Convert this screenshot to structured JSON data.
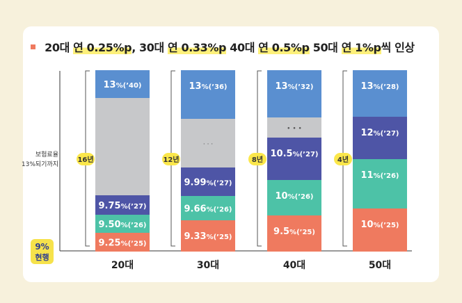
{
  "title": {
    "segments": [
      {
        "text": "20대 ",
        "hl": false
      },
      {
        "text": "연 0.25%p",
        "hl": true
      },
      {
        "text": ", 30대 ",
        "hl": false
      },
      {
        "text": "연 0.33%p",
        "hl": true
      },
      {
        "text": " 40대 ",
        "hl": false
      },
      {
        "text": "연 0.5%p",
        "hl": true
      },
      {
        "text": " 50대 ",
        "hl": false
      },
      {
        "text": "연 1%p",
        "hl": true
      },
      {
        "text": "씩 인상",
        "hl": false
      }
    ]
  },
  "axis": {
    "label_line1": "보험료율",
    "label_line2": "13%되기까지",
    "current_value": "9%",
    "current_label": "현행"
  },
  "colors": {
    "blue": "#5a8fd0",
    "indigo": "#4e55a6",
    "teal": "#4dc2a7",
    "salmon": "#ef7a5f",
    "gray": "#c7c8ca",
    "badge": "#fbe74b",
    "current_badge": "#f6e24b"
  },
  "chart_data": {
    "type": "bar",
    "categories": [
      "20대",
      "30대",
      "40대",
      "50대"
    ],
    "years_to_13pct": [
      "16년",
      "12년",
      "8년",
      "4년"
    ],
    "ylim": [
      9,
      13
    ],
    "stacks": [
      {
        "category": "20대",
        "segments": [
          {
            "rate": 9.25,
            "pct": "9.25",
            "year": "(’25)",
            "color": "salmon"
          },
          {
            "rate": 9.5,
            "pct": "9.50",
            "year": "(’26)",
            "color": "teal"
          },
          {
            "rate": 9.75,
            "pct": "9.75",
            "year": "(’27)",
            "color": "indigo"
          },
          {
            "rate": null,
            "gap": true,
            "dots": "",
            "color": "gray"
          },
          {
            "rate": 13,
            "pct": "13",
            "year": "(’40)",
            "color": "blue"
          }
        ]
      },
      {
        "category": "30대",
        "segments": [
          {
            "rate": 9.33,
            "pct": "9.33",
            "year": "(’25)",
            "color": "salmon"
          },
          {
            "rate": 9.66,
            "pct": "9.66",
            "year": "(’26)",
            "color": "teal"
          },
          {
            "rate": 9.99,
            "pct": "9.99",
            "year": "(’27)",
            "color": "indigo"
          },
          {
            "rate": null,
            "gap": true,
            "dots": "· · ·",
            "color": "gray"
          },
          {
            "rate": 13,
            "pct": "13",
            "year": "(’36)",
            "color": "blue"
          }
        ]
      },
      {
        "category": "40대",
        "segments": [
          {
            "rate": 9.5,
            "pct": "9.5",
            "year": "(’25)",
            "color": "salmon"
          },
          {
            "rate": 10,
            "pct": "10",
            "year": "(’26)",
            "color": "teal"
          },
          {
            "rate": 10.5,
            "pct": "10.5",
            "year": "(’27)",
            "color": "indigo"
          },
          {
            "rate": null,
            "gap": true,
            "dots": "• • •",
            "color": "gray"
          },
          {
            "rate": 13,
            "pct": "13",
            "year": "(’32)",
            "color": "blue"
          }
        ]
      },
      {
        "category": "50대",
        "segments": [
          {
            "rate": 10,
            "pct": "10",
            "year": "(’25)",
            "color": "salmon"
          },
          {
            "rate": 11,
            "pct": "11",
            "year": "(’26)",
            "color": "teal"
          },
          {
            "rate": 12,
            "pct": "12",
            "year": "(’27)",
            "color": "indigo"
          },
          {
            "rate": 13,
            "pct": "13",
            "year": "(’28)",
            "color": "blue"
          }
        ]
      }
    ]
  }
}
